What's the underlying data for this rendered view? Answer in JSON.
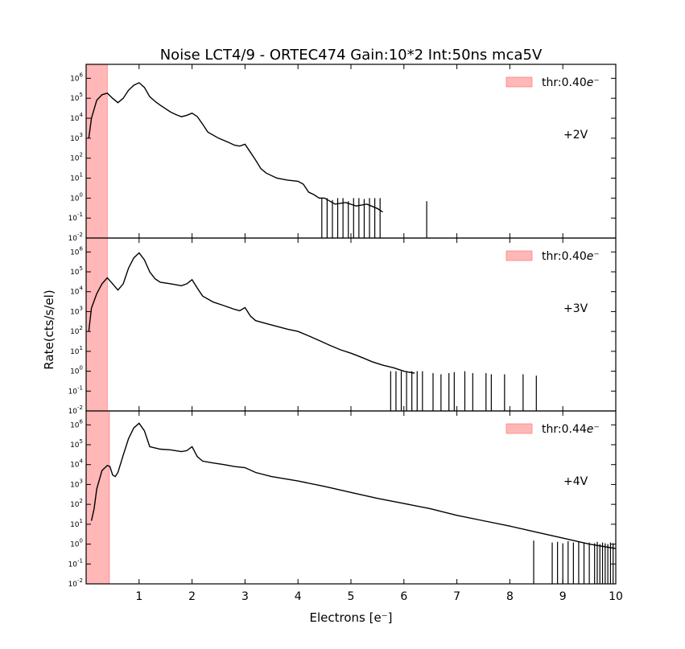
{
  "chart_data": {
    "type": "line",
    "title": "Noise LCT4/9 - ORTEC474 Gain:10*2 Int:50ns mca5V",
    "xlabel": "Electrons [e⁻]",
    "ylabel": "Rate(cts/s/el)",
    "xlim": [
      0,
      10
    ],
    "x_ticks": [
      "1",
      "2",
      "3",
      "4",
      "5",
      "6",
      "7",
      "8",
      "9",
      "10"
    ],
    "y_scale": "log",
    "ylim": [
      0.01,
      5000000
    ],
    "y_ticks": [
      {
        "base": "10",
        "exp": "-2"
      },
      {
        "base": "10",
        "exp": "-1"
      },
      {
        "base": "10",
        "exp": "0"
      },
      {
        "base": "10",
        "exp": "1"
      },
      {
        "base": "10",
        "exp": "2"
      },
      {
        "base": "10",
        "exp": "3"
      },
      {
        "base": "10",
        "exp": "4"
      },
      {
        "base": "10",
        "exp": "5"
      },
      {
        "base": "10",
        "exp": "6"
      }
    ],
    "threshold_color": "#ff9999",
    "line_color": "#000000",
    "legend_position": "upper right",
    "panels": [
      {
        "voltage_label": "+2V",
        "threshold_value": 0.4,
        "legend_text": "thr:0.40",
        "legend_unit": "e⁻",
        "series": {
          "x": [
            0.05,
            0.1,
            0.2,
            0.3,
            0.4,
            0.5,
            0.6,
            0.7,
            0.8,
            0.9,
            1.0,
            1.1,
            1.2,
            1.3,
            1.4,
            1.5,
            1.6,
            1.7,
            1.8,
            1.9,
            2.0,
            2.1,
            2.2,
            2.3,
            2.5,
            2.7,
            2.8,
            2.9,
            3.0,
            3.1,
            3.2,
            3.3,
            3.4,
            3.6,
            3.8,
            4.0,
            4.1,
            4.2,
            4.3,
            4.4,
            4.5,
            4.7,
            4.9,
            5.1,
            5.3,
            5.5,
            5.6
          ],
          "y": [
            1000,
            10000,
            80000,
            150000,
            180000,
            100000,
            60000,
            100000,
            250000,
            450000,
            600000,
            350000,
            120000,
            70000,
            45000,
            30000,
            20000,
            15000,
            12000,
            14000,
            18000,
            12000,
            5000,
            2000,
            1000,
            600,
            450,
            400,
            500,
            200,
            80,
            30,
            18,
            10,
            8,
            7,
            5,
            2,
            1.5,
            1,
            1,
            0.5,
            0.6,
            0.4,
            0.5,
            0.3,
            0.2
          ],
          "spikes_x": [
            4.45,
            4.55,
            4.65,
            4.75,
            4.85,
            4.95,
            5.05,
            5.15,
            5.25,
            5.35,
            5.45,
            5.55,
            6.43
          ],
          "spikes_y": [
            1,
            1,
            0.8,
            1,
            1,
            0.7,
            1,
            1,
            0.9,
            1,
            1,
            1,
            0.7
          ]
        }
      },
      {
        "voltage_label": "+3V",
        "threshold_value": 0.4,
        "legend_text": "thr:0.40",
        "legend_unit": "e⁻",
        "series": {
          "x": [
            0.05,
            0.1,
            0.2,
            0.3,
            0.4,
            0.5,
            0.6,
            0.7,
            0.8,
            0.9,
            1.0,
            1.1,
            1.2,
            1.3,
            1.4,
            1.6,
            1.8,
            1.9,
            2.0,
            2.1,
            2.2,
            2.4,
            2.6,
            2.8,
            2.9,
            3.0,
            3.1,
            3.2,
            3.4,
            3.6,
            3.8,
            4.0,
            4.2,
            4.4,
            4.6,
            4.8,
            5.0,
            5.2,
            5.4,
            5.6,
            5.8,
            6.0,
            6.2
          ],
          "y": [
            100,
            1500,
            8000,
            25000,
            50000,
            25000,
            12000,
            25000,
            150000,
            500000,
            900000,
            400000,
            100000,
            45000,
            30000,
            25000,
            20000,
            25000,
            40000,
            15000,
            6000,
            3000,
            2000,
            1300,
            1100,
            1600,
            600,
            350,
            250,
            180,
            130,
            100,
            60,
            35,
            20,
            12,
            8,
            5,
            3,
            2,
            1.5,
            1,
            0.8
          ],
          "spikes_x": [
            5.75,
            5.85,
            5.95,
            6.05,
            6.15,
            6.25,
            6.35,
            6.55,
            6.7,
            6.85,
            6.95,
            7.15,
            7.3,
            7.55,
            7.65,
            7.9,
            8.25,
            8.5
          ],
          "spikes_y": [
            1,
            1,
            1,
            1,
            1,
            1,
            1,
            0.8,
            0.7,
            0.8,
            0.9,
            1,
            0.8,
            0.8,
            0.7,
            0.7,
            0.7,
            0.6
          ]
        }
      },
      {
        "voltage_label": "+4V",
        "threshold_value": 0.44,
        "legend_text": "thr:0.44",
        "legend_unit": "e⁻",
        "series": {
          "x": [
            0.1,
            0.15,
            0.2,
            0.3,
            0.4,
            0.45,
            0.5,
            0.55,
            0.6,
            0.7,
            0.8,
            0.9,
            1.0,
            1.1,
            1.2,
            1.4,
            1.6,
            1.8,
            1.9,
            2.0,
            2.1,
            2.2,
            2.4,
            2.6,
            2.8,
            3.0,
            3.2,
            3.5,
            4.0,
            4.5,
            5.0,
            5.5,
            6.0,
            6.5,
            7.0,
            7.5,
            8.0,
            8.5,
            9.0,
            9.5,
            10.0
          ],
          "y": [
            15,
            60,
            600,
            5000,
            9000,
            8000,
            3000,
            2500,
            4000,
            30000,
            200000,
            700000,
            1200000,
            500000,
            80000,
            60000,
            55000,
            45000,
            50000,
            80000,
            25000,
            15000,
            12000,
            10000,
            8000,
            7000,
            4000,
            2500,
            1500,
            800,
            400,
            200,
            110,
            60,
            28,
            15,
            8,
            4,
            2,
            1,
            0.6
          ],
          "spikes_x": [
            8.45,
            8.8,
            8.9,
            9.0,
            9.1,
            9.2,
            9.3,
            9.4,
            9.5,
            9.6,
            9.65,
            9.7,
            9.75,
            9.8,
            9.85,
            9.9,
            9.95
          ],
          "spikes_y": [
            1.5,
            1.2,
            1.3,
            1.1,
            1.4,
            1.2,
            1.3,
            1.1,
            1.2,
            1.1,
            1.3,
            1.0,
            1.2,
            1.1,
            1.0,
            1.2,
            1.1
          ]
        }
      }
    ]
  }
}
